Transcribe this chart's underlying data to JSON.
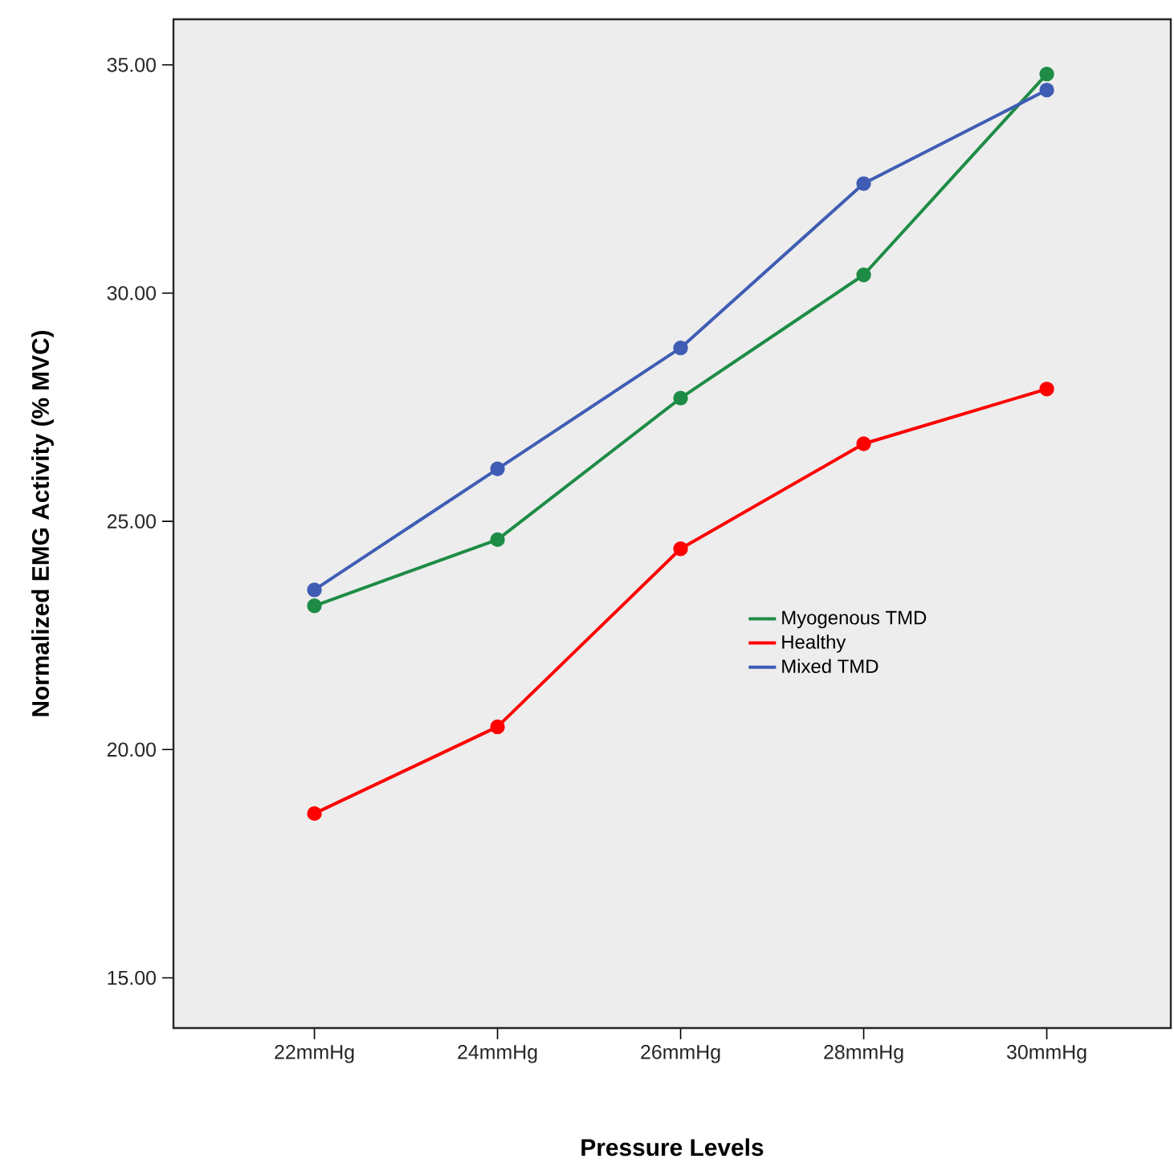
{
  "chart_data": {
    "type": "line",
    "xlabel": "Pressure Levels",
    "ylabel": "Normalized EMG Activity (% MVC)",
    "categories": [
      "22mmHg",
      "24mmHg",
      "26mmHg",
      "28mmHg",
      "30mmHg"
    ],
    "series": [
      {
        "name": "Myogenous TMD",
        "color": "#1e8c46",
        "values": [
          23.15,
          24.6,
          27.7,
          30.4,
          34.8
        ]
      },
      {
        "name": "Healthy",
        "color": "#ff0000",
        "values": [
          18.6,
          20.5,
          24.4,
          26.7,
          27.9
        ]
      },
      {
        "name": "Mixed TMD",
        "color": "#3f5db4",
        "values": [
          23.5,
          26.15,
          28.8,
          32.4,
          34.45
        ]
      }
    ],
    "ylim": [
      13.9,
      36
    ],
    "yticks": [
      {
        "value": 15,
        "label": "15.00"
      },
      {
        "value": 20,
        "label": "20.00"
      },
      {
        "value": 25,
        "label": "25.00"
      },
      {
        "value": 30,
        "label": "30.00"
      },
      {
        "value": 35,
        "label": "35.00"
      }
    ],
    "grid": false,
    "legend": "right",
    "marker": "circle",
    "line_style": "solid"
  }
}
